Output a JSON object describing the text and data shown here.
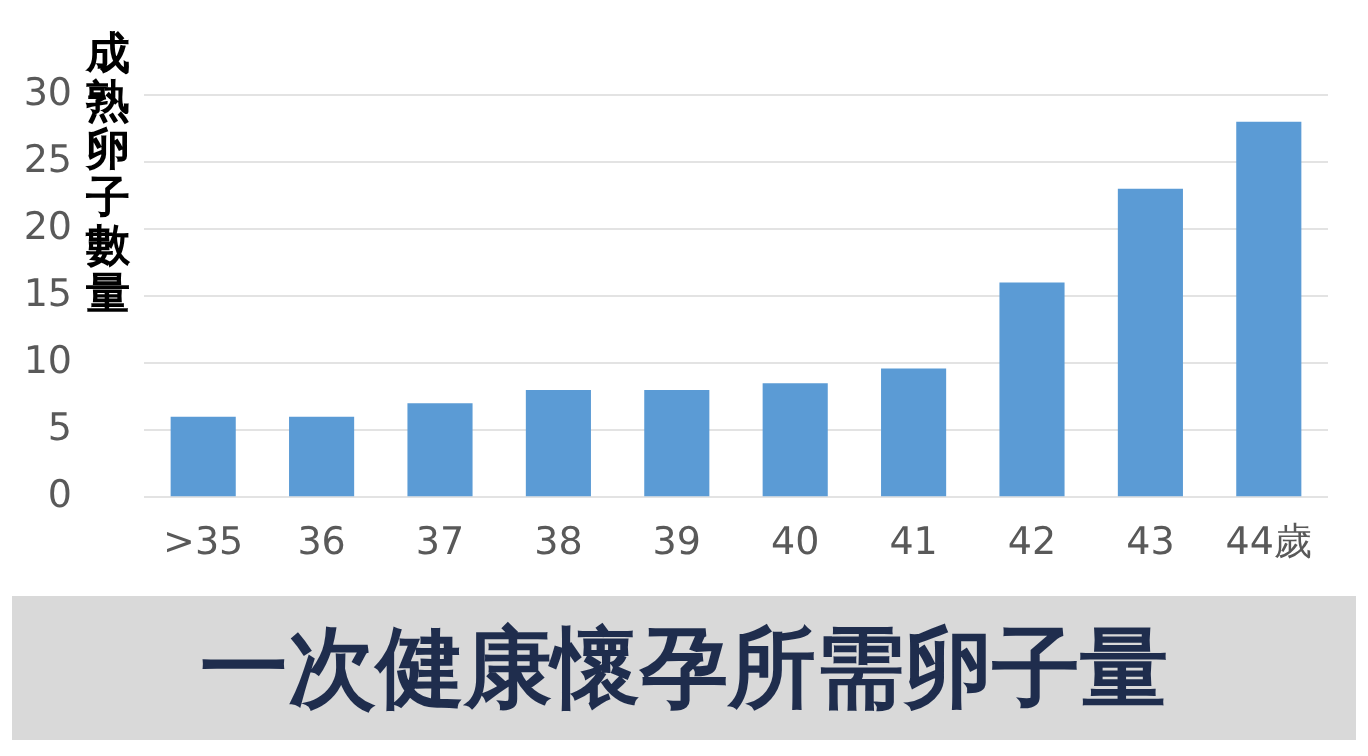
{
  "chart_data": {
    "type": "bar",
    "title": "一次健康懷孕所需卵子量",
    "ylabel": "成熟卵子數量",
    "categories": [
      ">35",
      "36",
      "37",
      "38",
      "39",
      "40",
      "41",
      "42",
      "43",
      "44歲"
    ],
    "values": [
      6,
      6,
      7,
      8,
      8,
      8.5,
      9.6,
      16,
      23,
      28
    ],
    "color": "#5b9bd5",
    "ylim": [
      0,
      30
    ],
    "yticks": [
      0,
      5,
      10,
      15,
      20,
      25,
      30
    ],
    "grid": "y",
    "legend": false
  }
}
